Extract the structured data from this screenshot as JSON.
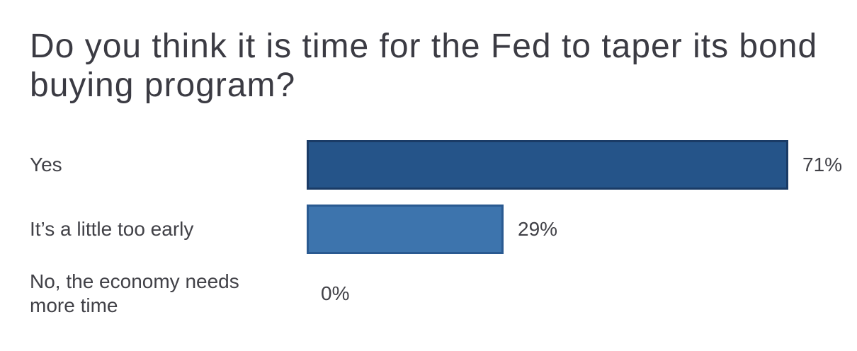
{
  "header": {
    "title": "Do you think it is time for the Fed to taper its bond\nbuying program?"
  },
  "chart_data": {
    "type": "bar",
    "orientation": "horizontal",
    "title": "Do you think it is time for the Fed to taper its bond buying program?",
    "categories": [
      "Yes",
      "It’s a little too early",
      "No, the economy needs\nmore time"
    ],
    "values": [
      71,
      29,
      0
    ],
    "value_labels": [
      "71%",
      "29%",
      "0%"
    ],
    "unit": "%",
    "xlim": [
      0,
      100
    ],
    "grid": false,
    "legend": false,
    "value_label_position": "right-of-bar",
    "bar_styles": [
      {
        "fill": "#255489",
        "border": "#1a3b66"
      },
      {
        "fill": "#3d74ad",
        "border": "#2a5a91"
      },
      {
        "fill": null,
        "border": null
      }
    ],
    "text_color": "#414147"
  }
}
